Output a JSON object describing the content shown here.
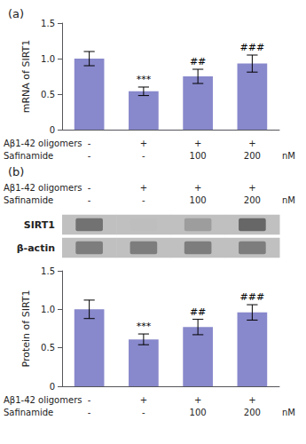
{
  "chart_data": [
    {
      "type": "bar",
      "title": "(a)",
      "categories": [
        "-\n-",
        "+\n-",
        "+\n100",
        "+\n200"
      ],
      "xlabel": [
        "Aβ1-42 oligomers",
        "Safinamide"
      ],
      "xunit": "nM",
      "ylabel": "mRNA of SIRT1",
      "values": [
        1.0,
        0.54,
        0.75,
        0.93
      ],
      "errors": [
        0.1,
        0.06,
        0.1,
        0.12
      ],
      "annotations": [
        null,
        "***",
        "##",
        "###"
      ],
      "color": "#8888CC",
      "ylim": [
        0,
        1.5
      ],
      "yticks": [
        0,
        0.5,
        {
          "value": 1.0,
          "label": "1.0"
        },
        {
          "value": 1.5,
          "label": "1.5"
        }
      ],
      "grid": false
    },
    {
      "type": "heatmap",
      "title": "(b)",
      "categories": [
        "-\n-",
        "+\n-",
        "+\n100",
        "+\n200"
      ],
      "xlabel": [
        "Aβ1-42 oligomers",
        "Safinamide"
      ],
      "xunit": "nM",
      "y_categories": [
        "SIRT1",
        "β-actin"
      ],
      "values": [
        [
          0.65,
          0.3,
          0.45,
          0.7
        ],
        [
          0.6,
          0.6,
          0.6,
          0.6
        ]
      ]
    },
    {
      "type": "bar",
      "categories": [
        "-\n-",
        "+\n-",
        "+\n100",
        "+\n200"
      ],
      "xlabel": [
        "Aβ1-42 oligomers",
        "Safinamide"
      ],
      "xunit": "nM",
      "ylabel": "Protein of SIRT1",
      "values": [
        1.0,
        0.61,
        0.77,
        0.96
      ],
      "errors": [
        0.12,
        0.07,
        0.1,
        0.1
      ],
      "annotations": [
        null,
        "***",
        "##",
        "###"
      ],
      "color": "#8888CC",
      "ylim": [
        0,
        1.5
      ],
      "yticks": [
        0,
        0.5,
        {
          "value": 1.0,
          "label": "1.0"
        },
        {
          "value": 1.5,
          "label": "1.5"
        }
      ],
      "grid": false
    }
  ]
}
